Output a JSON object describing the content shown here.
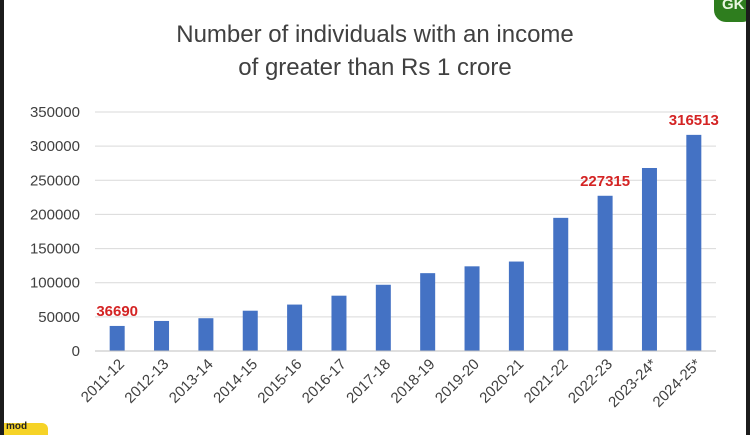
{
  "chart_data": {
    "type": "bar",
    "title_line1": "Number of individuals with an income",
    "title_line2": "of greater than Rs 1 crore",
    "xlabel": "",
    "ylabel": "",
    "categories": [
      "2011-12",
      "2012-13",
      "2013-14",
      "2014-15",
      "2015-16",
      "2016-17",
      "2017-18",
      "2018-19",
      "2019-20",
      "2020-21",
      "2021-22",
      "2022-23",
      "2023-24*",
      "2024-25*"
    ],
    "values": [
      36690,
      44000,
      48000,
      59000,
      68000,
      81000,
      97000,
      114000,
      124000,
      131000,
      195000,
      227315,
      268000,
      316513
    ],
    "data_labels": [
      "36690",
      "",
      "",
      "",
      "",
      "",
      "",
      "",
      "",
      "",
      "",
      "227315",
      "",
      "316513"
    ],
    "ylim": [
      0,
      350000
    ],
    "y_ticks": [
      "0",
      "50000",
      "100000",
      "150000",
      "200000",
      "250000",
      "300000",
      "350000"
    ],
    "grid": true,
    "bar_color": "#4472c4",
    "label_color": "#d42424"
  },
  "decor": {
    "corner_badge_text": "GK",
    "bottom_badge_text": "mod"
  }
}
